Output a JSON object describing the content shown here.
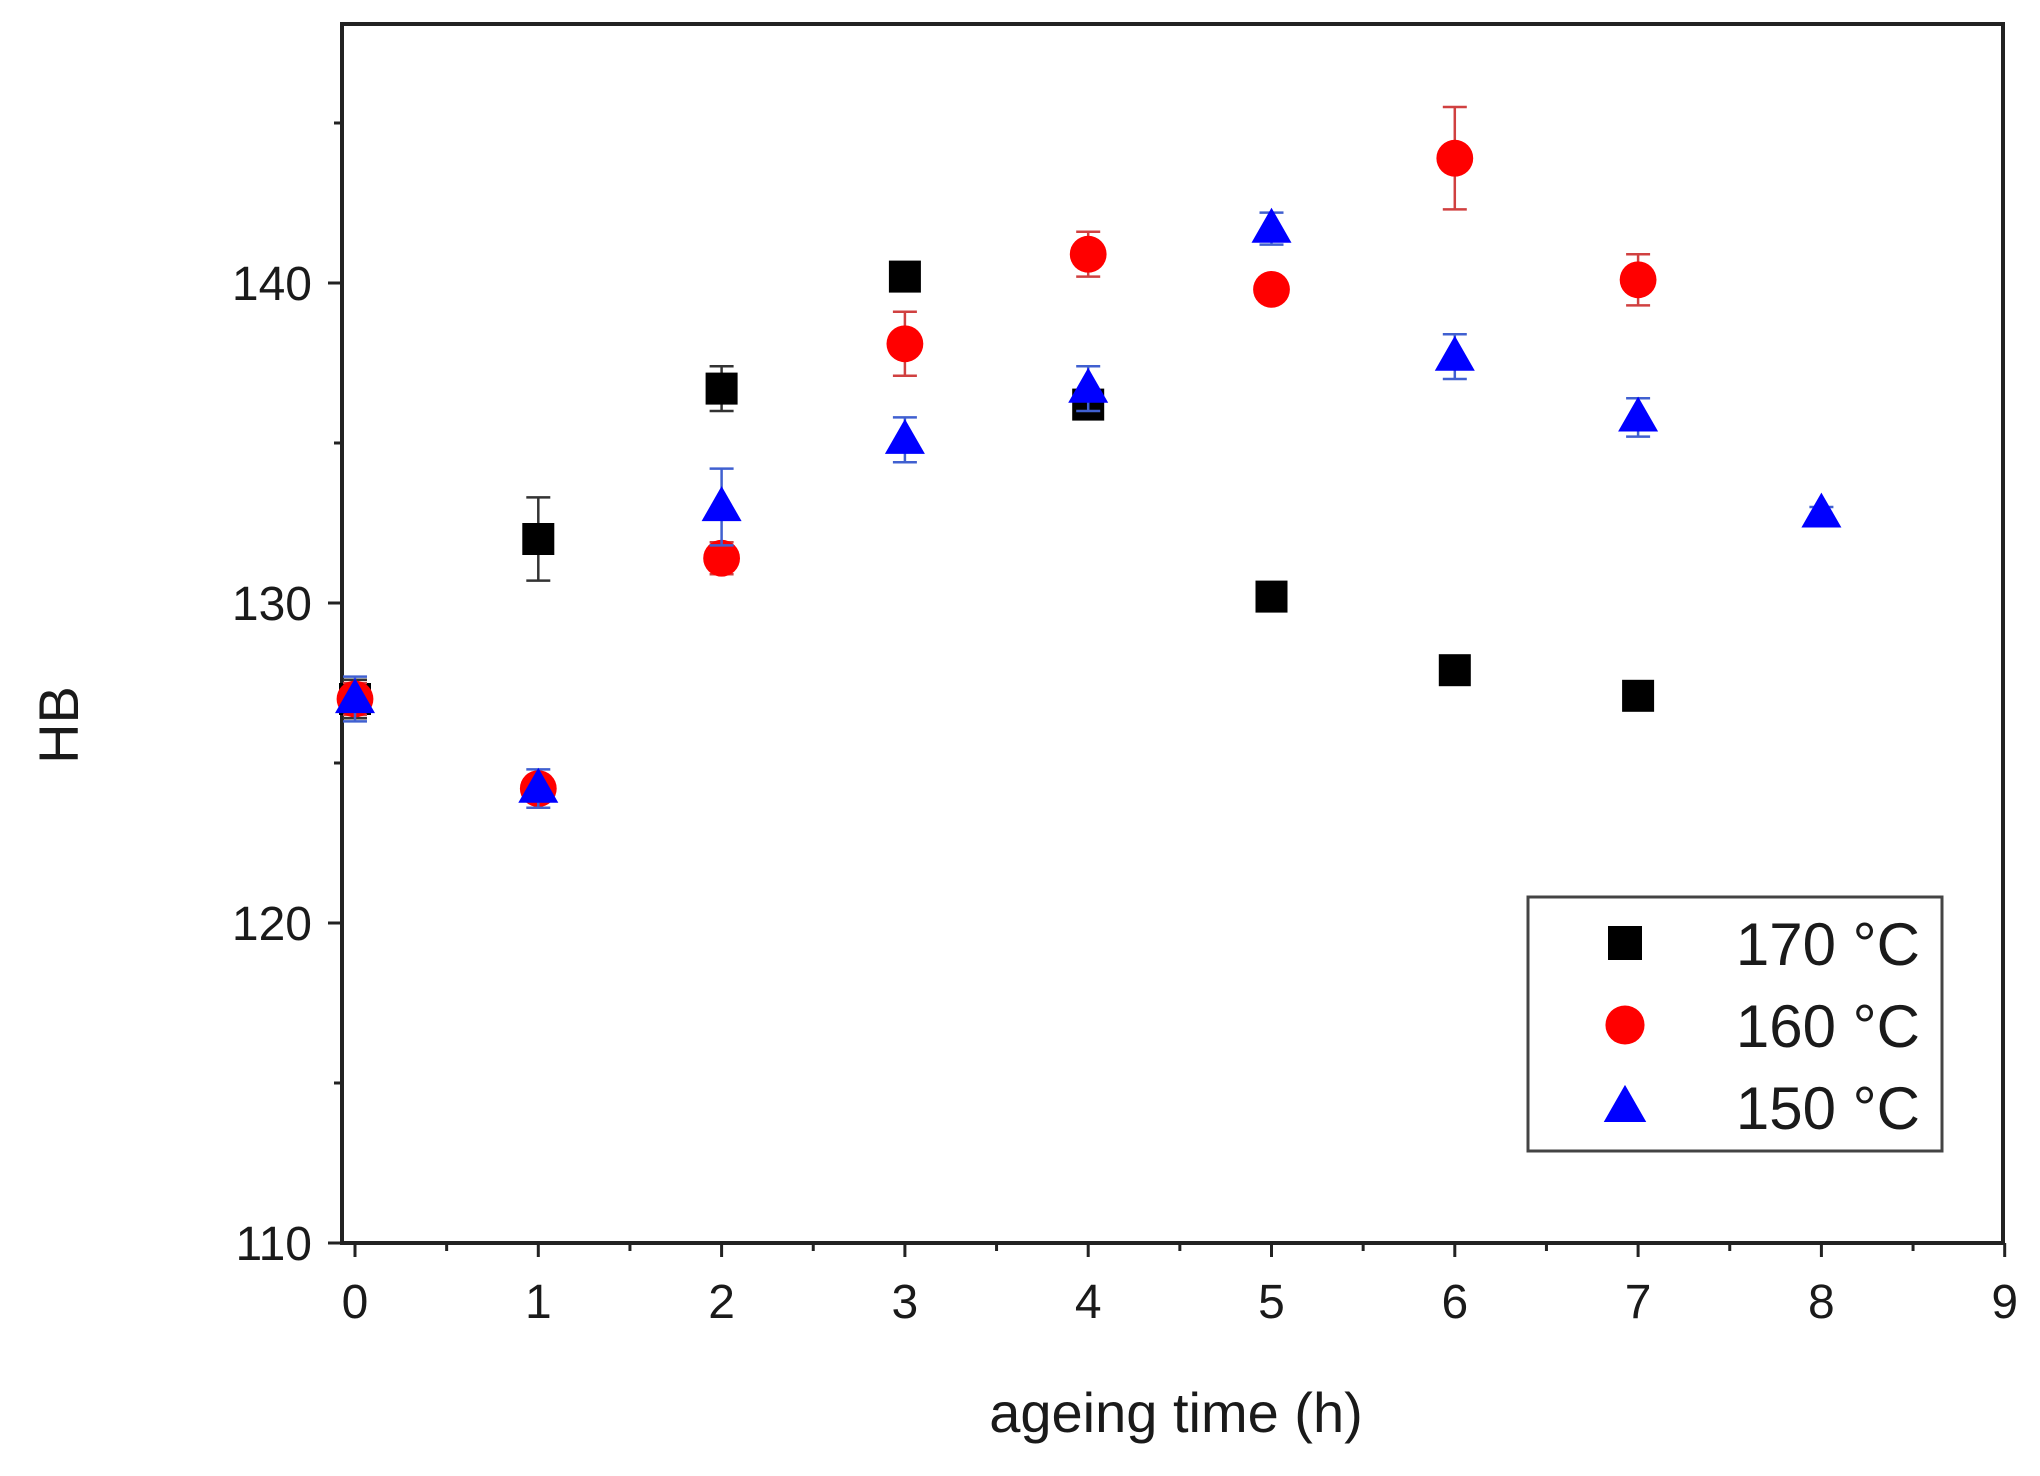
{
  "chart_data": {
    "type": "scatter",
    "title": "",
    "xlabel": "ageing time (h)",
    "ylabel": "HB",
    "xlim": [
      0,
      9
    ],
    "ylim": [
      110,
      147
    ],
    "x_ticks": [
      "0",
      "1",
      "2",
      "3",
      "4",
      "5",
      "6",
      "7",
      "8",
      "9"
    ],
    "y_ticks": [
      "110",
      "120",
      "130",
      "140"
    ],
    "legend_position": "bottom-right",
    "series": [
      {
        "name": "170 °C",
        "marker": "square",
        "color": "#000000",
        "points": [
          {
            "x": 0,
            "y": 127.0,
            "err": 0.6
          },
          {
            "x": 1,
            "y": 132.0,
            "err": 1.3
          },
          {
            "x": 2,
            "y": 136.7,
            "err": 0.7
          },
          {
            "x": 3,
            "y": 140.2,
            "err": 0.3
          },
          {
            "x": 4,
            "y": 136.2,
            "err": 0.4
          },
          {
            "x": 5,
            "y": 130.2,
            "err": 0.2
          },
          {
            "x": 6,
            "y": 127.9,
            "err": 0.2
          },
          {
            "x": 7,
            "y": 127.1,
            "err": 0.2
          }
        ]
      },
      {
        "name": "160 °C",
        "marker": "circle",
        "color": "#ff0000",
        "points": [
          {
            "x": 0,
            "y": 127.0,
            "err": 0.5
          },
          {
            "x": 1,
            "y": 124.2,
            "err": 0.4
          },
          {
            "x": 2,
            "y": 131.4,
            "err": 0.5
          },
          {
            "x": 3,
            "y": 138.1,
            "err": 1.0
          },
          {
            "x": 4,
            "y": 140.9,
            "err": 0.7
          },
          {
            "x": 5,
            "y": 139.8,
            "err": 0.3
          },
          {
            "x": 6,
            "y": 143.9,
            "err": 1.6
          },
          {
            "x": 7,
            "y": 140.1,
            "err": 0.8
          }
        ]
      },
      {
        "name": "150 °C",
        "marker": "triangle",
        "color": "#0000ff",
        "points": [
          {
            "x": 0,
            "y": 127.0,
            "err": 0.7
          },
          {
            "x": 1,
            "y": 124.2,
            "err": 0.6
          },
          {
            "x": 2,
            "y": 133.0,
            "err": 1.2
          },
          {
            "x": 3,
            "y": 135.1,
            "err": 0.7
          },
          {
            "x": 4,
            "y": 136.7,
            "err": 0.7
          },
          {
            "x": 5,
            "y": 141.7,
            "err": 0.5
          },
          {
            "x": 6,
            "y": 137.7,
            "err": 0.7
          },
          {
            "x": 7,
            "y": 135.8,
            "err": 0.6
          },
          {
            "x": 8,
            "y": 132.8,
            "err": 0.2
          }
        ]
      }
    ]
  }
}
